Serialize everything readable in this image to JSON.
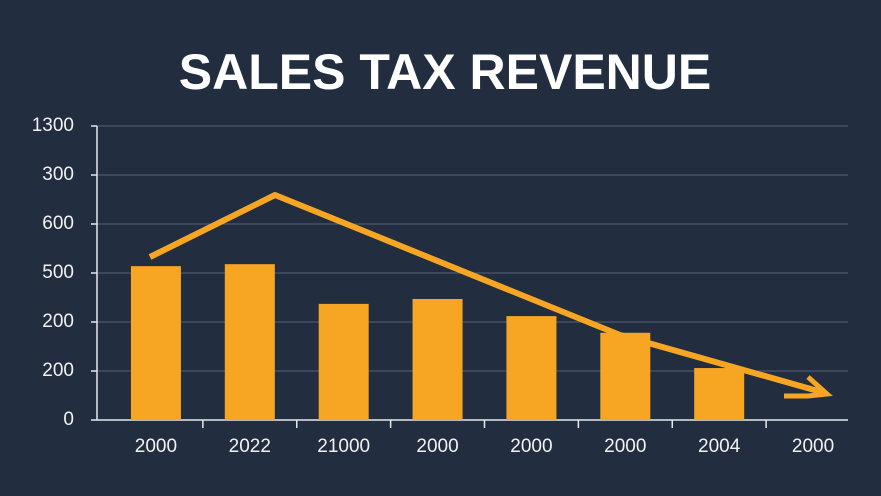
{
  "chart_data": {
    "type": "bar",
    "title": "SALES TAX REVENUE",
    "categories": [
      "2000",
      "2022",
      "21000",
      "2000",
      "2000",
      "2000",
      "2004",
      "2000"
    ],
    "values": [
      3.14,
      3.18,
      2.37,
      2.47,
      2.12,
      1.78,
      1.06,
      null
    ],
    "color": "#f6a623",
    "ylim": [
      0,
      6
    ],
    "yticks": [
      {
        "value": 0,
        "label": "0"
      },
      {
        "value": 1,
        "label": "200"
      },
      {
        "value": 2,
        "label": "200"
      },
      {
        "value": 3,
        "label": "500"
      },
      {
        "value": 4,
        "label": "600"
      },
      {
        "value": 5,
        "label": "300"
      },
      {
        "value": 6,
        "label": "1300"
      }
    ],
    "grid": true
  }
}
